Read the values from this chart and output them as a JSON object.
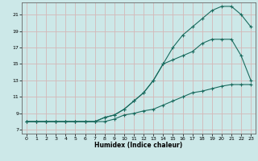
{
  "title": "",
  "xlabel": "Humidex (Indice chaleur)",
  "ylabel": "",
  "bg_color": "#cce8e8",
  "grid_color": "#b8d4d4",
  "line_color": "#1a6b5e",
  "xlim": [
    -0.5,
    23.5
  ],
  "ylim": [
    6.5,
    22.5
  ],
  "xticks": [
    0,
    1,
    2,
    3,
    4,
    5,
    6,
    7,
    8,
    9,
    10,
    11,
    12,
    13,
    14,
    15,
    16,
    17,
    18,
    19,
    20,
    21,
    22,
    23
  ],
  "yticks": [
    7,
    9,
    11,
    13,
    15,
    17,
    19,
    21
  ],
  "line1_x": [
    0,
    1,
    2,
    3,
    4,
    5,
    6,
    7,
    8,
    9,
    10,
    11,
    12,
    13,
    14,
    15,
    16,
    17,
    18,
    19,
    20,
    21,
    22,
    23
  ],
  "line1_y": [
    8,
    8,
    8,
    8,
    8,
    8,
    8,
    8,
    8.5,
    8.8,
    9.5,
    10.5,
    11.5,
    13,
    15,
    17,
    18.5,
    19.5,
    20.5,
    21.5,
    22,
    22,
    21,
    19.5
  ],
  "line2_x": [
    0,
    1,
    2,
    3,
    4,
    5,
    6,
    7,
    8,
    9,
    10,
    11,
    12,
    13,
    14,
    15,
    16,
    17,
    18,
    19,
    20,
    21,
    22,
    23
  ],
  "line2_y": [
    8,
    8,
    8,
    8,
    8,
    8,
    8,
    8,
    8.5,
    8.8,
    9.5,
    10.5,
    11.5,
    13,
    15,
    15.5,
    16,
    16.5,
    17.5,
    18,
    18,
    18,
    16,
    13
  ],
  "line3_x": [
    0,
    1,
    2,
    3,
    4,
    5,
    6,
    7,
    8,
    9,
    10,
    11,
    12,
    13,
    14,
    15,
    16,
    17,
    18,
    19,
    20,
    21,
    22,
    23
  ],
  "line3_y": [
    8,
    8,
    8,
    8,
    8,
    8,
    8,
    8,
    8,
    8.3,
    8.8,
    9,
    9.3,
    9.5,
    10,
    10.5,
    11,
    11.5,
    11.7,
    12,
    12.3,
    12.5,
    12.5,
    12.5
  ]
}
